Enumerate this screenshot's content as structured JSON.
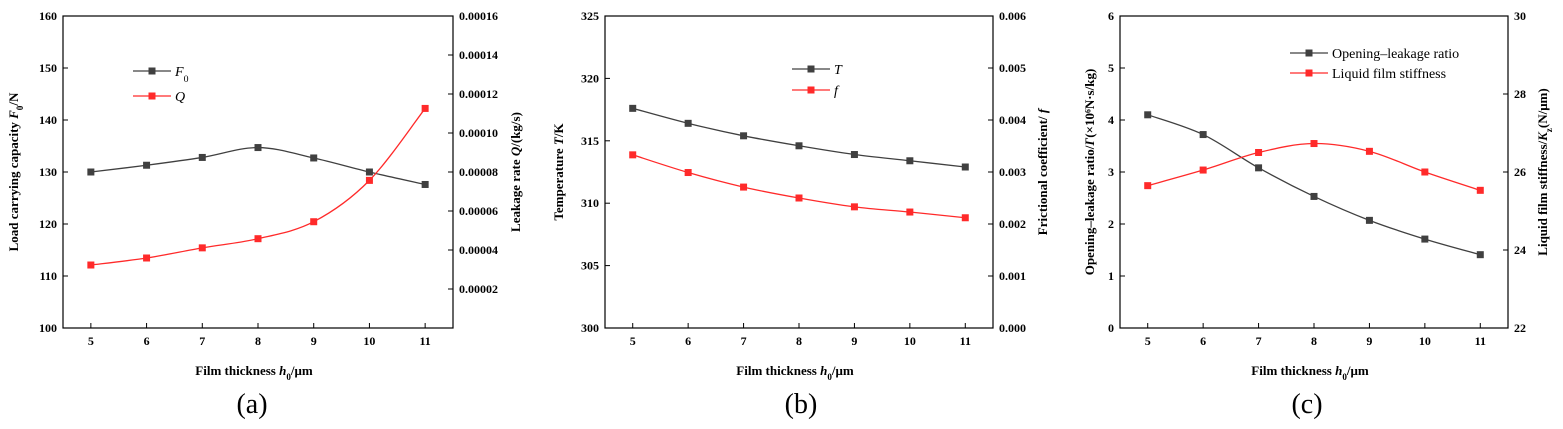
{
  "chart_data": [
    {
      "type": "line",
      "panel_label": "(a)",
      "xlabel": "Film thickness h0/μm",
      "xlabel_parts": [
        "Film thickness ",
        "h",
        "0",
        "/μm"
      ],
      "x": [
        5,
        6,
        7,
        8,
        9,
        10,
        11
      ],
      "xlim": [
        4.5,
        11.5
      ],
      "xticks": [
        "5",
        "6",
        "7",
        "8",
        "9",
        "10",
        "11"
      ],
      "ylabel_left": "Load carrying capacity F0/N",
      "ylabel_left_parts": [
        "Load carrying capacity ",
        "F",
        "0",
        "/N"
      ],
      "ylim_left": [
        100,
        160
      ],
      "yticks_left": [
        "100",
        "110",
        "120",
        "130",
        "140",
        "150",
        "160"
      ],
      "ylabel_right": "Leakage rate Q/(kg/s)",
      "ylabel_right_parts": [
        "Leakage rate ",
        "Q",
        "",
        "/(kg/s)"
      ],
      "ylim_right": [
        0,
        0.00016
      ],
      "yticks_right": [
        "0.00002",
        "0.00004",
        "0.00006",
        "0.00008",
        "0.00010",
        "0.00012",
        "0.00014",
        "0.00016"
      ],
      "legend_position": "upper-left",
      "series": [
        {
          "name": "F0",
          "legend_main": "F",
          "legend_sub": "0",
          "axis": "left",
          "color": "#404040",
          "values": [
            130.0,
            131.3,
            132.8,
            134.7,
            132.7,
            130.0,
            127.6
          ]
        },
        {
          "name": "Q",
          "legend_main": "Q",
          "legend_sub": "",
          "axis": "right",
          "color": "#ff2a2a",
          "values": [
            3.23e-05,
            3.59e-05,
            4.11e-05,
            4.58e-05,
            5.45e-05,
            7.57e-05,
            0.0001126
          ]
        }
      ]
    },
    {
      "type": "line",
      "panel_label": "(b)",
      "xlabel": "Film thickness h0/μm",
      "xlabel_parts": [
        "Film thickness ",
        "h",
        "0",
        "/μm"
      ],
      "x": [
        5,
        6,
        7,
        8,
        9,
        10,
        11
      ],
      "xlim": [
        4.5,
        11.5
      ],
      "xticks": [
        "5",
        "6",
        "7",
        "8",
        "9",
        "10",
        "11"
      ],
      "ylabel_left": "Temperature T/K",
      "ylabel_left_parts": [
        "Temperature ",
        "T",
        "",
        "/K"
      ],
      "ylim_left": [
        300,
        325
      ],
      "yticks_left": [
        "300",
        "305",
        "310",
        "315",
        "320",
        "325"
      ],
      "ylabel_right": "Frictional coefficient/ f",
      "ylabel_right_parts": [
        "Frictional coefficient/ ",
        "f",
        "",
        ""
      ],
      "ylim_right": [
        0,
        0.006
      ],
      "yticks_right": [
        "0.000",
        "0.001",
        "0.002",
        "0.003",
        "0.004",
        "0.005",
        "0.006"
      ],
      "legend_position": "upper-center",
      "series": [
        {
          "name": "T",
          "legend_main": "T",
          "legend_sub": "",
          "axis": "left",
          "color": "#404040",
          "values": [
            317.6,
            316.4,
            315.4,
            314.6,
            313.9,
            313.4,
            312.9
          ]
        },
        {
          "name": "f",
          "legend_main": "f",
          "legend_sub": "",
          "axis": "right",
          "color": "#ff2a2a",
          "values": [
            0.00333,
            0.00299,
            0.00271,
            0.0025,
            0.00233,
            0.00223,
            0.00212
          ]
        }
      ]
    },
    {
      "type": "line",
      "panel_label": "(c)",
      "xlabel": "Film thickness h0/μm",
      "xlabel_parts": [
        "Film thickness ",
        "h",
        "0",
        "/μm"
      ],
      "x": [
        5,
        6,
        7,
        8,
        9,
        10,
        11
      ],
      "xlim": [
        4.5,
        11.5
      ],
      "xticks": [
        "5",
        "6",
        "7",
        "8",
        "9",
        "10",
        "11"
      ],
      "ylabel_left": "Opening-leakage ratio/Γ(×10⁶N·s/kg)",
      "ylabel_left_parts": [
        "Opening–leakage ratio/",
        "Γ",
        "",
        "(×10⁶N·s/kg)"
      ],
      "ylim_left": [
        0,
        6
      ],
      "yticks_left": [
        "0",
        "1",
        "2",
        "3",
        "4",
        "5",
        "6"
      ],
      "ylabel_right": "Liquid film stiffness/Kz(N/μm)",
      "ylabel_right_parts": [
        "Liquid film stiffness/",
        "K",
        "z",
        "(N/μm)"
      ],
      "ylim_right": [
        22,
        30
      ],
      "yticks_right": [
        "22",
        "24",
        "26",
        "28",
        "30"
      ],
      "legend_position": "upper-right",
      "series": [
        {
          "name": "Opening–leakage ratio",
          "legend_main": "Opening–leakage ratio",
          "legend_sub": "",
          "axis": "left",
          "color": "#404040",
          "values": [
            4.1,
            3.72,
            3.08,
            2.53,
            2.07,
            1.71,
            1.41
          ]
        },
        {
          "name": "Liquid film stiffness",
          "legend_main": "Liquid film stiffness",
          "legend_sub": "",
          "axis": "right",
          "color": "#ff2a2a",
          "values": [
            25.65,
            26.05,
            26.5,
            26.73,
            26.53,
            26.0,
            25.53
          ]
        }
      ]
    }
  ]
}
